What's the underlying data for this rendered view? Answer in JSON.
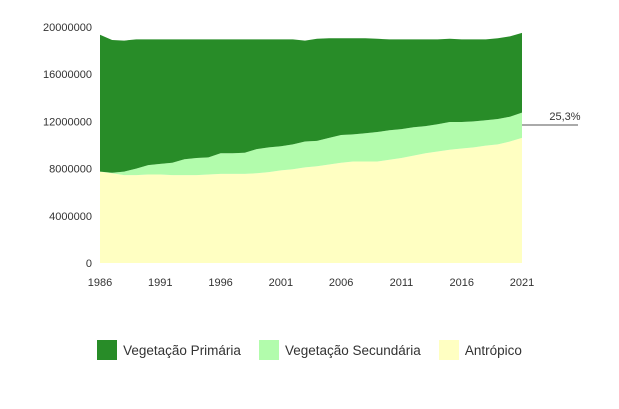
{
  "chart_data": {
    "type": "area",
    "stacked": true,
    "x": [
      1986,
      1987,
      1988,
      1989,
      1990,
      1991,
      1992,
      1993,
      1994,
      1995,
      1996,
      1997,
      1998,
      1999,
      2000,
      2001,
      2002,
      2003,
      2004,
      2005,
      2006,
      2007,
      2008,
      2009,
      2010,
      2011,
      2012,
      2013,
      2014,
      2015,
      2016,
      2017,
      2018,
      2019,
      2020,
      2021
    ],
    "series": [
      {
        "name": "Antrópico",
        "color": "#ffffc2",
        "values": [
          7750000,
          7600000,
          7450000,
          7450000,
          7500000,
          7500000,
          7450000,
          7450000,
          7450000,
          7500000,
          7550000,
          7550000,
          7550000,
          7600000,
          7700000,
          7850000,
          7950000,
          8100000,
          8200000,
          8350000,
          8500000,
          8600000,
          8600000,
          8600000,
          8750000,
          8900000,
          9100000,
          9300000,
          9450000,
          9600000,
          9700000,
          9800000,
          9950000,
          10050000,
          10300000,
          10600000
        ]
      },
      {
        "name": "Vegetação Secundária",
        "color": "#b2fcac",
        "values": [
          0,
          50000,
          300000,
          550000,
          800000,
          900000,
          1050000,
          1350000,
          1450000,
          1450000,
          1750000,
          1750000,
          1800000,
          2050000,
          2100000,
          2050000,
          2100000,
          2200000,
          2150000,
          2250000,
          2350000,
          2300000,
          2400000,
          2500000,
          2500000,
          2450000,
          2400000,
          2300000,
          2300000,
          2350000,
          2250000,
          2200000,
          2150000,
          2150000,
          2100000,
          2150000
        ]
      },
      {
        "name": "Vegetação Primária",
        "color": "#288c28",
        "values": [
          11600000,
          11250000,
          11100000,
          10950000,
          10650000,
          10550000,
          10450000,
          10150000,
          10050000,
          10000000,
          9650000,
          9650000,
          9600000,
          9300000,
          9150000,
          9050000,
          8900000,
          8550000,
          8650000,
          8450000,
          8200000,
          8150000,
          8050000,
          7900000,
          7700000,
          7600000,
          7450000,
          7350000,
          7200000,
          7050000,
          7000000,
          6950000,
          6850000,
          6850000,
          6800000,
          6750000
        ]
      }
    ],
    "ylim": [
      0,
      20000000
    ],
    "yticks": [
      "0",
      "4000000",
      "8000000",
      "12000000",
      "16000000",
      "20000000"
    ],
    "xticks": [
      "1986",
      "1991",
      "1996",
      "2001",
      "2006",
      "2011",
      "2016",
      "2021"
    ],
    "annotation": {
      "label": "25,3%",
      "y": 11700000
    },
    "legend_position": "bottom",
    "grid": false
  }
}
